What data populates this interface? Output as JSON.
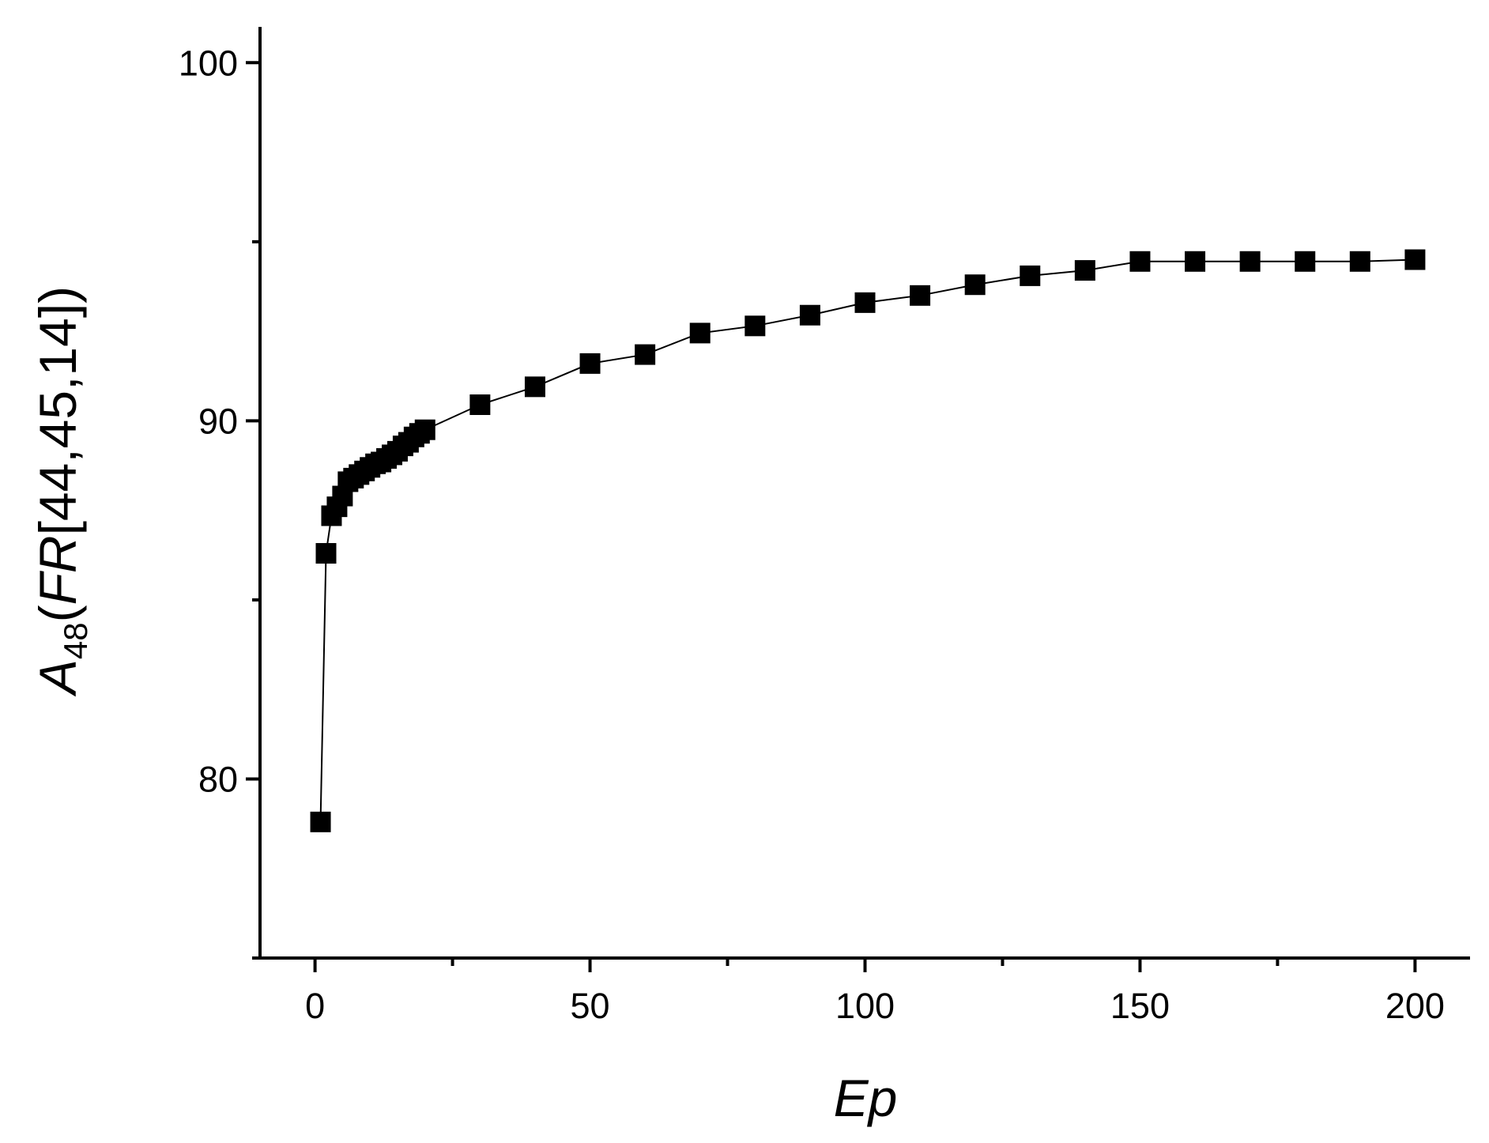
{
  "chart_data": {
    "type": "line",
    "xlabel": "Ep",
    "ylabel": [
      "A",
      "48",
      "(",
      "FR",
      "[44,45,14])"
    ],
    "x": [
      1,
      2,
      3,
      4,
      5,
      6,
      7,
      8,
      9,
      10,
      11,
      12,
      13,
      14,
      15,
      16,
      17,
      18,
      19,
      20,
      30,
      40,
      50,
      60,
      70,
      80,
      90,
      100,
      110,
      120,
      130,
      140,
      150,
      160,
      170,
      180,
      190,
      200
    ],
    "series": [
      {
        "color": "#000000",
        "marker": "square",
        "values": [
          78.8,
          86.3,
          87.35,
          87.6,
          87.9,
          88.3,
          88.4,
          88.5,
          88.6,
          88.7,
          88.8,
          88.85,
          88.95,
          89.05,
          89.15,
          89.3,
          89.4,
          89.55,
          89.65,
          89.75,
          90.45,
          90.95,
          91.6,
          91.85,
          92.45,
          92.65,
          92.95,
          93.3,
          93.5,
          93.8,
          94.05,
          94.2,
          94.45,
          94.45,
          94.45,
          94.45,
          94.45,
          94.5
        ]
      }
    ],
    "xlim": [
      -10,
      210
    ],
    "ylim": [
      75,
      101
    ],
    "xticks": [
      0,
      50,
      100,
      150,
      200
    ],
    "yticks": [
      80,
      90,
      100
    ],
    "xminor_ticks": [
      25,
      75,
      125,
      175
    ],
    "yminor_ticks": [
      75,
      85,
      95
    ],
    "grid": false
  }
}
